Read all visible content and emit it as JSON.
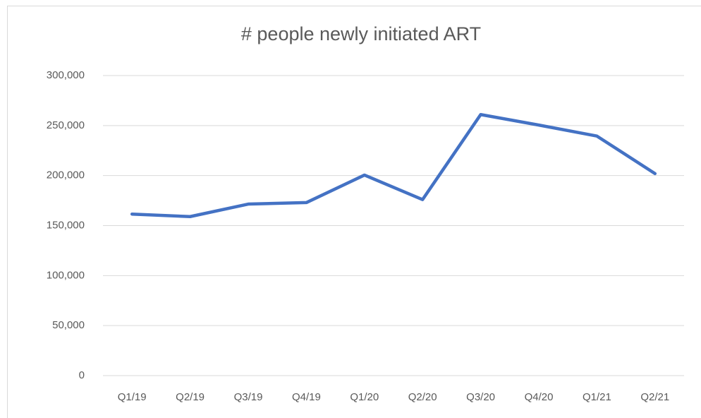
{
  "chart_data": {
    "type": "line",
    "title": "# people newly initiated ART",
    "categories": [
      "Q1/19",
      "Q2/19",
      "Q3/19",
      "Q4/19",
      "Q1/20",
      "Q2/20",
      "Q3/20",
      "Q4/20",
      "Q1/21",
      "Q2/21"
    ],
    "series": [
      {
        "name": "# people newly initiated ART",
        "color": "#4472c4",
        "values": [
          161500,
          159000,
          171500,
          173000,
          200500,
          176000,
          261000,
          250500,
          239500,
          202000
        ]
      }
    ],
    "ylim": [
      0,
      300000
    ],
    "yticks": [
      0,
      {
        "value": 50000,
        "label": "50,000"
      },
      {
        "value": 100000,
        "label": "100,000"
      },
      {
        "value": 150000,
        "label": "150,000"
      },
      {
        "value": 200000,
        "label": "200,000"
      },
      {
        "value": 250000,
        "label": "250,000"
      },
      {
        "value": 300000,
        "label": "300,000"
      }
    ],
    "grid": true
  }
}
